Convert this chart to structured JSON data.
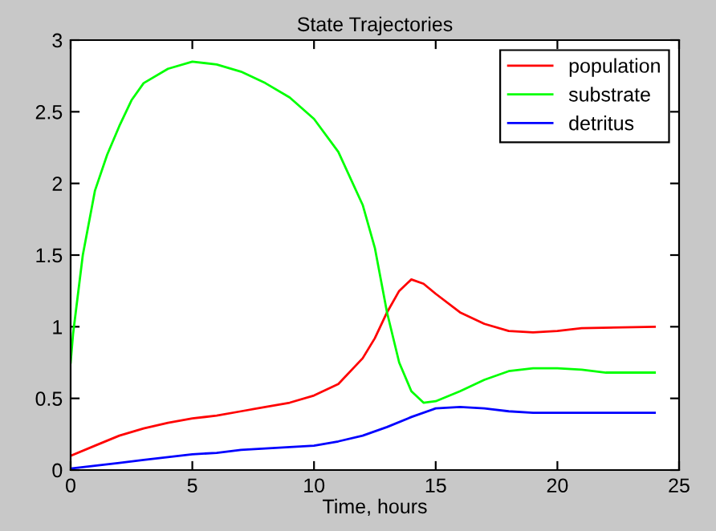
{
  "chart_data": {
    "type": "line",
    "title": "State Trajectories",
    "xlabel": "Time, hours",
    "xlim": [
      0,
      25
    ],
    "xticks": [
      0,
      5,
      10,
      15,
      20,
      25
    ],
    "ylim": [
      0,
      3
    ],
    "yticks": [
      0,
      0.5,
      1,
      1.5,
      2,
      2.5,
      3
    ],
    "grid": false,
    "legend": "top right",
    "marker": "none",
    "line_style": "solid",
    "series": [
      {
        "name": "population",
        "color": "#ff0000",
        "x": [
          0,
          1,
          2,
          3,
          4,
          5,
          6,
          7,
          8,
          9,
          10,
          11,
          12,
          12.5,
          13,
          13.5,
          14,
          14.5,
          15,
          16,
          17,
          18,
          19,
          20,
          21,
          24
        ],
        "values": [
          0.1,
          0.17,
          0.24,
          0.29,
          0.33,
          0.36,
          0.38,
          0.41,
          0.44,
          0.47,
          0.52,
          0.6,
          0.78,
          0.92,
          1.1,
          1.25,
          1.33,
          1.3,
          1.23,
          1.1,
          1.02,
          0.97,
          0.96,
          0.97,
          0.99,
          1.0
        ]
      },
      {
        "name": "substrate",
        "color": "#00ff00",
        "x": [
          0,
          0.1,
          0.5,
          1,
          1.5,
          2,
          2.5,
          3,
          4,
          5,
          6,
          7,
          8,
          9,
          10,
          11,
          12,
          12.5,
          13,
          13.5,
          14,
          14.5,
          15,
          16,
          17,
          18,
          19,
          20,
          21,
          22,
          24
        ],
        "values": [
          0.75,
          0.95,
          1.5,
          1.95,
          2.2,
          2.4,
          2.58,
          2.7,
          2.8,
          2.85,
          2.83,
          2.78,
          2.7,
          2.6,
          2.45,
          2.22,
          1.85,
          1.55,
          1.1,
          0.75,
          0.55,
          0.47,
          0.48,
          0.55,
          0.63,
          0.69,
          0.71,
          0.71,
          0.7,
          0.68,
          0.68
        ]
      },
      {
        "name": "detritus",
        "color": "#0000ff",
        "x": [
          0,
          1,
          2,
          3,
          4,
          5,
          6,
          7,
          8,
          9,
          10,
          11,
          12,
          13,
          14,
          15,
          16,
          17,
          18,
          19,
          24
        ],
        "values": [
          0.01,
          0.03,
          0.05,
          0.07,
          0.09,
          0.11,
          0.12,
          0.14,
          0.15,
          0.16,
          0.17,
          0.2,
          0.24,
          0.3,
          0.37,
          0.43,
          0.44,
          0.43,
          0.41,
          0.4,
          0.4
        ]
      }
    ]
  }
}
